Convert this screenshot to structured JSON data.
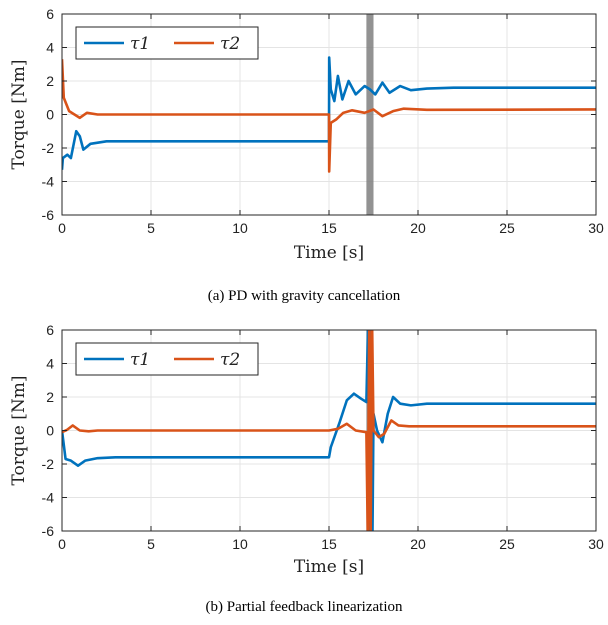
{
  "colors": {
    "tau1": "#0072BD",
    "tau2": "#D95319",
    "switch_band": "#7f7f7f"
  },
  "chart_data": [
    {
      "type": "line",
      "caption": "(a) PD with gravity cancellation",
      "xlabel": "Time [s]",
      "ylabel": "Torque [Nm]",
      "xlim": [
        0,
        30
      ],
      "ylim": [
        -6,
        6
      ],
      "xticks": [
        0,
        5,
        10,
        15,
        20,
        25,
        30
      ],
      "yticks": [
        -6,
        -4,
        -2,
        0,
        2,
        4,
        6
      ],
      "grid": true,
      "legend": {
        "placement": "top-left",
        "entries": [
          "τ1",
          "τ2"
        ]
      },
      "shaded_interval": [
        17.1,
        17.5
      ],
      "series": [
        {
          "name": "τ1",
          "color_key": "tau1",
          "points": [
            [
              0,
              -3.3
            ],
            [
              0.05,
              -2.6
            ],
            [
              0.3,
              -2.4
            ],
            [
              0.5,
              -2.6
            ],
            [
              0.8,
              -1.0
            ],
            [
              1.0,
              -1.3
            ],
            [
              1.2,
              -2.1
            ],
            [
              1.6,
              -1.75
            ],
            [
              2.5,
              -1.6
            ],
            [
              15.0,
              -1.6
            ],
            [
              15.01,
              3.4
            ],
            [
              15.1,
              1.5
            ],
            [
              15.3,
              0.8
            ],
            [
              15.5,
              2.3
            ],
            [
              15.75,
              0.9
            ],
            [
              16.1,
              2.0
            ],
            [
              16.5,
              1.2
            ],
            [
              17.0,
              1.7
            ],
            [
              17.3,
              1.5
            ],
            [
              17.6,
              1.2
            ],
            [
              18.0,
              1.9
            ],
            [
              18.4,
              1.3
            ],
            [
              19.0,
              1.7
            ],
            [
              19.6,
              1.45
            ],
            [
              20.5,
              1.55
            ],
            [
              22,
              1.6
            ],
            [
              30,
              1.6
            ]
          ]
        },
        {
          "name": "τ2",
          "color_key": "tau2",
          "points": [
            [
              0,
              3.3
            ],
            [
              0.1,
              1.0
            ],
            [
              0.4,
              0.2
            ],
            [
              0.7,
              0.0
            ],
            [
              1.0,
              -0.2
            ],
            [
              1.4,
              0.1
            ],
            [
              2.0,
              0.0
            ],
            [
              15.0,
              0.0
            ],
            [
              15.01,
              -3.4
            ],
            [
              15.1,
              -0.5
            ],
            [
              15.4,
              -0.3
            ],
            [
              15.8,
              0.1
            ],
            [
              16.3,
              0.25
            ],
            [
              17.0,
              0.1
            ],
            [
              17.5,
              0.3
            ],
            [
              18.0,
              -0.1
            ],
            [
              18.6,
              0.2
            ],
            [
              19.2,
              0.35
            ],
            [
              20.5,
              0.28
            ],
            [
              30,
              0.3
            ]
          ]
        }
      ]
    },
    {
      "type": "line",
      "caption": "(b) Partial feedback linearization",
      "xlabel": "Time [s]",
      "ylabel": "Torque [Nm]",
      "xlim": [
        0,
        30
      ],
      "ylim": [
        -6,
        6
      ],
      "xticks": [
        0,
        5,
        10,
        15,
        20,
        25,
        30
      ],
      "yticks": [
        -6,
        -4,
        -2,
        0,
        2,
        4,
        6
      ],
      "grid": true,
      "legend": {
        "placement": "top-left",
        "entries": [
          "τ1",
          "τ2"
        ]
      },
      "shaded_interval": [
        17.1,
        17.5
      ],
      "series": [
        {
          "name": "τ1",
          "color_key": "tau1",
          "points": [
            [
              0,
              0.0
            ],
            [
              0.2,
              -1.7
            ],
            [
              0.5,
              -1.8
            ],
            [
              0.9,
              -2.1
            ],
            [
              1.3,
              -1.8
            ],
            [
              2.0,
              -1.65
            ],
            [
              3.0,
              -1.6
            ],
            [
              15.0,
              -1.6
            ],
            [
              15.1,
              -1.0
            ],
            [
              15.6,
              0.5
            ],
            [
              16.0,
              1.8
            ],
            [
              16.4,
              2.2
            ],
            [
              16.8,
              1.9
            ],
            [
              17.1,
              1.7
            ],
            [
              17.2,
              6.5
            ],
            [
              17.28,
              -6.5
            ],
            [
              17.36,
              6.5
            ],
            [
              17.44,
              -6.5
            ],
            [
              17.5,
              1.0
            ],
            [
              17.7,
              0.0
            ],
            [
              18.0,
              -0.7
            ],
            [
              18.3,
              1.0
            ],
            [
              18.6,
              2.0
            ],
            [
              19.0,
              1.6
            ],
            [
              19.6,
              1.5
            ],
            [
              20.5,
              1.6
            ],
            [
              30,
              1.6
            ]
          ]
        },
        {
          "name": "τ2",
          "color_key": "tau2",
          "points": [
            [
              0,
              -0.1
            ],
            [
              0.3,
              0.05
            ],
            [
              0.6,
              0.3
            ],
            [
              1.0,
              0.0
            ],
            [
              1.5,
              -0.05
            ],
            [
              2.0,
              0.0
            ],
            [
              15.0,
              0.0
            ],
            [
              15.5,
              0.1
            ],
            [
              16.0,
              0.4
            ],
            [
              16.5,
              0.0
            ],
            [
              17.1,
              -0.1
            ],
            [
              17.18,
              -6.5
            ],
            [
              17.26,
              6.5
            ],
            [
              17.34,
              -6.5
            ],
            [
              17.42,
              6.5
            ],
            [
              17.5,
              0.0
            ],
            [
              17.8,
              -0.4
            ],
            [
              18.1,
              -0.2
            ],
            [
              18.5,
              0.6
            ],
            [
              18.9,
              0.3
            ],
            [
              19.5,
              0.25
            ],
            [
              30,
              0.25
            ]
          ]
        }
      ]
    }
  ]
}
